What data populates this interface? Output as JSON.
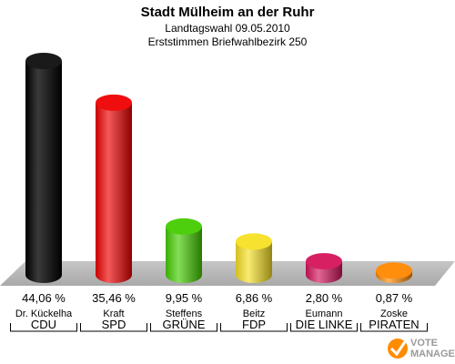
{
  "chart_data": {
    "type": "bar",
    "title": "Stadt Mülheim an der Ruhr",
    "subtitle_1": "Landtagswahl 09.05.2010",
    "subtitle_2": "Erststimmen Briefwahlbezirk 250",
    "categories": [
      "CDU",
      "SPD",
      "GRÜNE",
      "FDP",
      "DIE LINKE",
      "PIRATEN"
    ],
    "candidates": [
      "Dr. Kückelha",
      "Kraft",
      "Steffens",
      "Beitz",
      "Eumann",
      "Zoske"
    ],
    "values": [
      44.06,
      35.46,
      9.95,
      6.86,
      2.8,
      0.87
    ],
    "value_labels": [
      "44,06 %",
      "35,46 %",
      "9,95 %",
      "6,86 %",
      "2,80 %",
      "0,87 %"
    ],
    "colors": [
      "#000000",
      "#ee0000",
      "#44cc00",
      "#f7e024",
      "#d4145a",
      "#ff8800"
    ],
    "ylim": [
      0,
      44.06
    ],
    "grid": false,
    "legend": "none"
  },
  "logo": {
    "line1": "VOTE",
    "line2": "MANAGER"
  }
}
